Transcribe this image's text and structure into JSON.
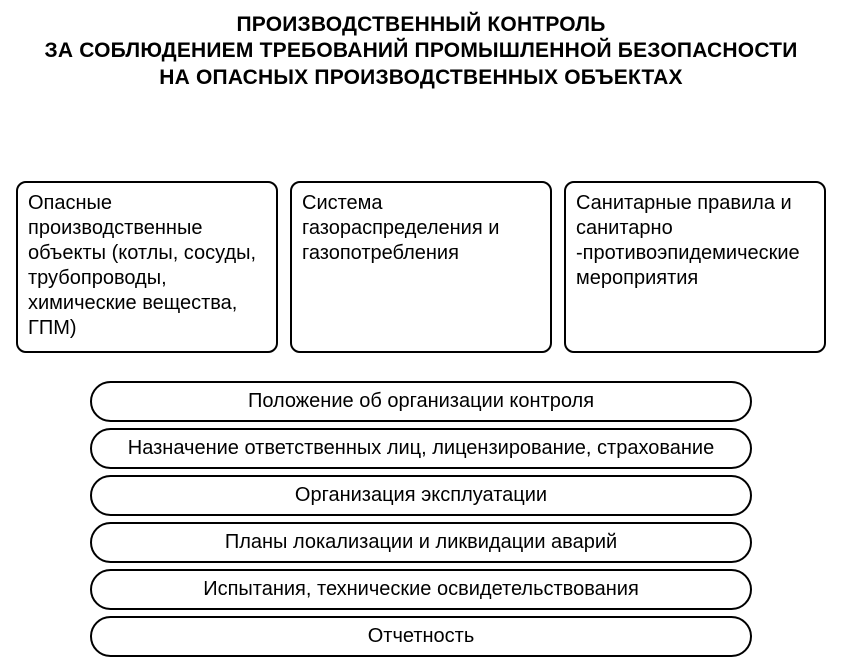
{
  "diagram": {
    "type": "infographic",
    "background_color": "#ffffff",
    "text_color": "#000000",
    "border_color": "#000000",
    "title": {
      "lines": [
        "ПРОИЗВОДСТВЕННЫЙ КОНТРОЛЬ",
        "ЗА СОБЛЮДЕНИЕМ ТРЕБОВАНИЙ  ПРОМЫШЛЕННОЙ БЕЗОПАСНОСТИ",
        "НА ОПАСНЫХ ПРОИЗВОДСТВЕННЫХ ОБЪЕКТАХ"
      ],
      "font_size": 21,
      "font_weight": 700,
      "align": "center"
    },
    "top_boxes": {
      "border_width": 2,
      "border_radius": 10,
      "font_size": 20,
      "gap": 12,
      "items": [
        "Опасные производственные объекты (котлы, сосуды, трубопроводы, химические вещества, ГПМ)",
        "Система газораспределения и газопотребления",
        "Санитарные правила и санитарно -противоэпидемические мероприятия"
      ]
    },
    "pills": {
      "border_width": 2,
      "border_radius": 999,
      "font_size": 20,
      "gap": 6,
      "items": [
        "Положение об организации контроля",
        "Назначение ответственных лиц, лицензирование, страхование",
        "Организация эксплуатации",
        "Планы локализации и ликвидации аварий",
        "Испытания, технические освидетельствования",
        "Отчетность"
      ]
    }
  }
}
